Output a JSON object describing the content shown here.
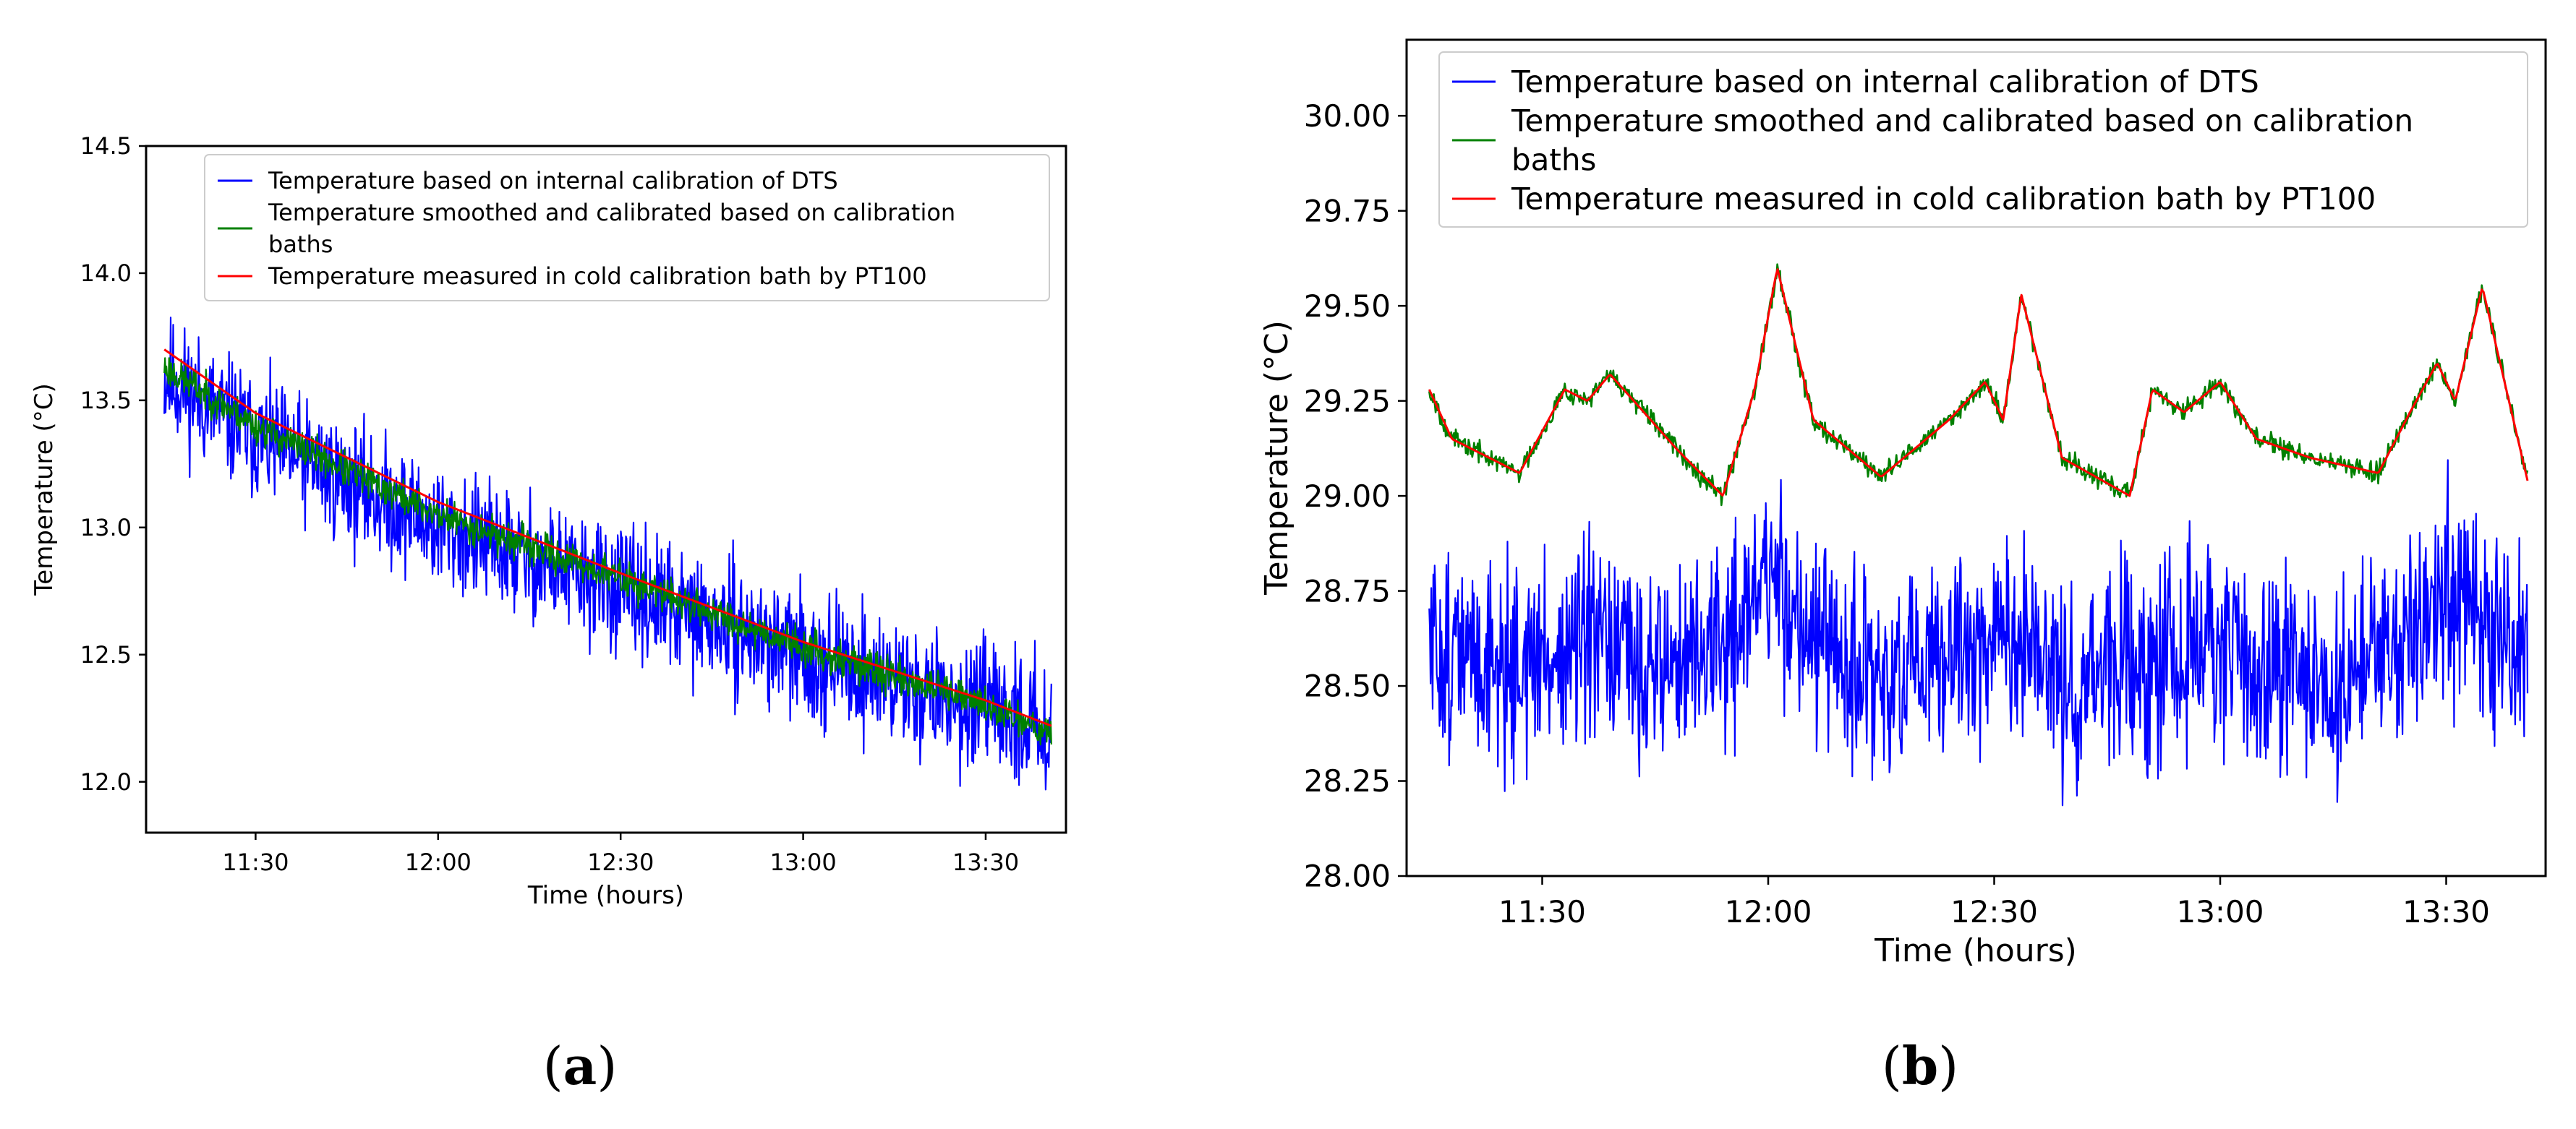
{
  "chart_data": [
    {
      "panel_label": "(a)",
      "panel_letter": "a",
      "type": "line",
      "xlabel": "Time (hours)",
      "ylabel": "Temperature (°C)",
      "x_range_hours": [
        11.2,
        13.72
      ],
      "ylim": [
        11.8,
        14.5
      ],
      "xticks": [
        {
          "v": 11.5,
          "label": "11:30"
        },
        {
          "v": 12.0,
          "label": "12:00"
        },
        {
          "v": 12.5,
          "label": "12:30"
        },
        {
          "v": 13.0,
          "label": "13:00"
        },
        {
          "v": 13.5,
          "label": "13:30"
        }
      ],
      "yticks": [
        {
          "v": 12.0,
          "label": "12.0"
        },
        {
          "v": 12.5,
          "label": "12.5"
        },
        {
          "v": 13.0,
          "label": "13.0"
        },
        {
          "v": 13.5,
          "label": "13.5"
        },
        {
          "v": 14.0,
          "label": "14.0"
        },
        {
          "v": 14.5,
          "label": "14.5"
        }
      ],
      "legend_position": "top-right",
      "legend": [
        {
          "lines": [
            "Temperature based on internal calibration of DTS"
          ],
          "color": "#0000ff"
        },
        {
          "lines": [
            "Temperature smoothed and calibrated based on calibration",
            "baths"
          ],
          "color": "#008000"
        },
        {
          "lines": [
            "Temperature measured in cold calibration bath by PT100"
          ],
          "color": "#ff0000"
        }
      ],
      "series": [
        {
          "name": "Temperature based on internal calibration of DTS",
          "color": "#0000ff",
          "x": [
            11.25,
            11.5,
            12.0,
            12.5,
            13.0,
            13.5,
            13.68
          ],
          "values": [
            13.6,
            13.35,
            13.0,
            12.75,
            12.5,
            12.28,
            12.22
          ],
          "noise": 0.28
        },
        {
          "name": "Temperature smoothed and calibrated based on calibration baths",
          "color": "#008000",
          "x": [
            11.25,
            11.5,
            12.0,
            12.5,
            13.0,
            13.5,
            13.68
          ],
          "values": [
            13.63,
            13.4,
            13.05,
            12.8,
            12.53,
            12.3,
            12.2
          ],
          "noise": 0.08
        },
        {
          "name": "Temperature measured in cold calibration bath by PT100",
          "color": "#ff0000",
          "x": [
            11.25,
            11.5,
            12.0,
            12.5,
            13.0,
            13.5,
            13.68
          ],
          "values": [
            13.7,
            13.45,
            13.1,
            12.82,
            12.55,
            12.32,
            12.22
          ],
          "noise": 0.0
        }
      ]
    },
    {
      "panel_label": "(b)",
      "panel_letter": "b",
      "type": "line",
      "xlabel": "Time (hours)",
      "ylabel": "Temperature (°C)",
      "x_range_hours": [
        11.2,
        13.72
      ],
      "ylim": [
        28.0,
        30.2
      ],
      "xticks": [
        {
          "v": 11.5,
          "label": "11:30"
        },
        {
          "v": 12.0,
          "label": "12:00"
        },
        {
          "v": 12.5,
          "label": "12:30"
        },
        {
          "v": 13.0,
          "label": "13:00"
        },
        {
          "v": 13.5,
          "label": "13:30"
        }
      ],
      "yticks": [
        {
          "v": 28.0,
          "label": "28.00"
        },
        {
          "v": 28.25,
          "label": "28.25"
        },
        {
          "v": 28.5,
          "label": "28.50"
        },
        {
          "v": 28.75,
          "label": "28.75"
        },
        {
          "v": 29.0,
          "label": "29.00"
        },
        {
          "v": 29.25,
          "label": "29.25"
        },
        {
          "v": 29.5,
          "label": "29.50"
        },
        {
          "v": 29.75,
          "label": "29.75"
        },
        {
          "v": 30.0,
          "label": "30.00"
        }
      ],
      "legend_position": "top-left",
      "legend": [
        {
          "lines": [
            "Temperature based on internal calibration of DTS"
          ],
          "color": "#0000ff"
        },
        {
          "lines": [
            "Temperature smoothed and calibrated based on calibration",
            "baths"
          ],
          "color": "#008000"
        },
        {
          "lines": [
            "Temperature measured in cold calibration bath by PT100"
          ],
          "color": "#ff0000"
        }
      ],
      "series": [
        {
          "name": "Temperature based on internal calibration of DTS",
          "color": "#0000ff",
          "x": [
            11.25,
            11.45,
            11.6,
            11.75,
            11.9,
            12.0,
            12.15,
            12.3,
            12.5,
            12.65,
            12.8,
            12.95,
            13.1,
            13.3,
            13.5,
            13.68
          ],
          "values": [
            28.6,
            28.55,
            28.6,
            28.55,
            28.6,
            28.8,
            28.55,
            28.5,
            28.65,
            28.5,
            28.55,
            28.6,
            28.55,
            28.5,
            28.75,
            28.6
          ],
          "noise": 0.3
        },
        {
          "name": "Temperature smoothed and calibrated based on calibration baths",
          "color": "#008000",
          "x": [
            11.25,
            11.3,
            11.45,
            11.55,
            11.6,
            11.65,
            11.8,
            11.9,
            11.97,
            12.02,
            12.1,
            12.25,
            12.4,
            12.48,
            12.52,
            12.56,
            12.65,
            12.8,
            12.85,
            12.92,
            13.0,
            13.08,
            13.2,
            13.35,
            13.42,
            13.48,
            13.52,
            13.58,
            13.68
          ],
          "values": [
            29.28,
            29.15,
            29.06,
            29.28,
            29.25,
            29.32,
            29.12,
            29.0,
            29.28,
            29.6,
            29.2,
            29.05,
            29.2,
            29.3,
            29.2,
            29.53,
            29.1,
            29.0,
            29.28,
            29.22,
            29.3,
            29.15,
            29.1,
            29.06,
            29.22,
            29.35,
            29.25,
            29.55,
            29.04
          ],
          "noise": 0.03
        },
        {
          "name": "Temperature measured in cold calibration bath by PT100",
          "color": "#ff0000",
          "x": [
            11.25,
            11.3,
            11.45,
            11.55,
            11.6,
            11.65,
            11.8,
            11.9,
            11.97,
            12.02,
            12.1,
            12.25,
            12.4,
            12.48,
            12.52,
            12.56,
            12.65,
            12.8,
            12.85,
            12.92,
            13.0,
            13.08,
            13.2,
            13.35,
            13.42,
            13.48,
            13.52,
            13.58,
            13.68
          ],
          "values": [
            29.28,
            29.15,
            29.06,
            29.28,
            29.25,
            29.32,
            29.12,
            29.0,
            29.28,
            29.6,
            29.2,
            29.05,
            29.2,
            29.3,
            29.2,
            29.53,
            29.1,
            29.0,
            29.28,
            29.22,
            29.3,
            29.15,
            29.1,
            29.06,
            29.22,
            29.35,
            29.25,
            29.55,
            29.04
          ],
          "noise": 0.0
        }
      ]
    }
  ]
}
